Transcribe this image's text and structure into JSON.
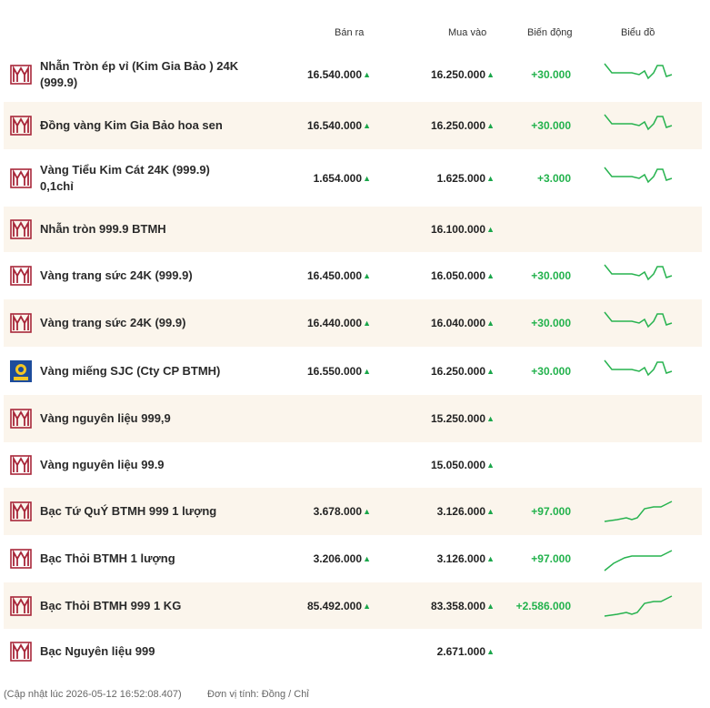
{
  "header": {
    "sell": "Bán ra",
    "buy": "Mua vào",
    "change": "Biến động",
    "chart": "Biểu đồ"
  },
  "rows": [
    {
      "name": "Nhẫn Tròn ép vỉ (Kim Gia Bảo ) 24K (999.9)",
      "sell": "16.540.000",
      "buy": "16.250.000",
      "change": "+30.000"
    },
    {
      "name": "Đồng vàng Kim Gia Bảo hoa sen",
      "sell": "16.540.000",
      "buy": "16.250.000",
      "change": "+30.000"
    },
    {
      "name": "Vàng Tiểu Kim Cát 24K (999.9) 0,1chỉ",
      "sell": "1.654.000",
      "buy": "1.625.000",
      "change": "+3.000"
    },
    {
      "name": "Nhẫn tròn 999.9 BTMH",
      "buy": "16.100.000"
    },
    {
      "name": "Vàng trang sức 24K (999.9)",
      "sell": "16.450.000",
      "buy": "16.050.000",
      "change": "+30.000"
    },
    {
      "name": "Vàng trang sức 24K (99.9)",
      "sell": "16.440.000",
      "buy": "16.040.000",
      "change": "+30.000"
    },
    {
      "name": "Vàng miếng SJC (Cty CP BTMH)",
      "sell": "16.550.000",
      "buy": "16.250.000",
      "change": "+30.000"
    },
    {
      "name": "Vàng nguyên liệu 999,9",
      "buy": "15.250.000"
    },
    {
      "name": "Vàng nguyên liệu 99.9",
      "buy": "15.050.000"
    },
    {
      "name": "Bạc Tứ QuÝ BTMH 999 1 lượng",
      "sell": "3.678.000",
      "buy": "3.126.000",
      "change": "+97.000"
    },
    {
      "name": "Bạc Thỏi BTMH 1 lượng",
      "sell": "3.206.000",
      "buy": "3.126.000",
      "change": "+97.000"
    },
    {
      "name": "Bạc Thỏi BTMH 999 1 KG",
      "sell": "85.492.000",
      "buy": "83.358.000",
      "change": "+2.586.000"
    },
    {
      "name": "Bạc Nguyên liệu 999",
      "buy": "2.671.000"
    }
  ],
  "footer": {
    "updated": "(Cập nhật lúc 2026-05-12 16:52:08.407)",
    "unit": "Đơn vị tính: Đồng / Chỉ"
  }
}
